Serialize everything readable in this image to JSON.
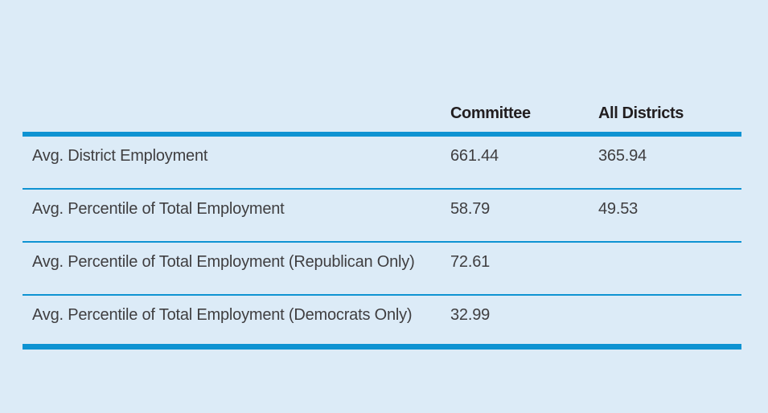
{
  "chart_data": {
    "type": "table",
    "columns": [
      "",
      "Committee",
      "All Districts"
    ],
    "rows": [
      [
        "Avg. District Employment",
        "661.44",
        "365.94"
      ],
      [
        "Avg. Percentile of Total Employment",
        "58.79",
        "49.53"
      ],
      [
        "Avg. Percentile of Total Employment (Republican Only)",
        "72.61",
        ""
      ],
      [
        "Avg. Percentile of Total Employment (Democrats Only)",
        "32.99",
        ""
      ]
    ],
    "legend_position": "none",
    "grid": "horizontal-rules-only"
  },
  "colors": {
    "background": "#dcebf7",
    "rule_blue": "#0e93d2",
    "header_text": "#221e20",
    "body_text": "#3f3e40"
  }
}
